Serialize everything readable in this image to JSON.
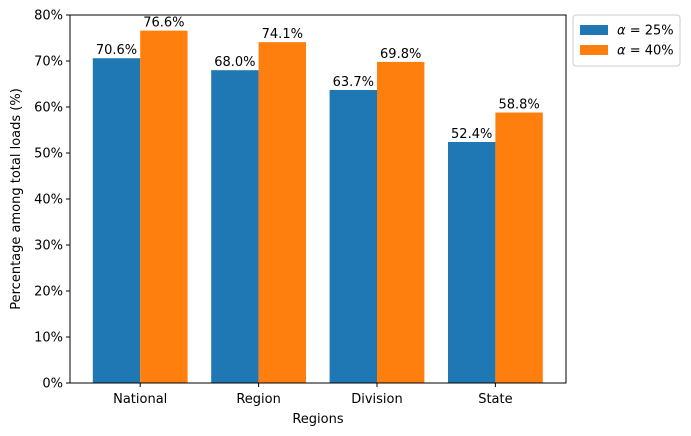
{
  "chart_data": {
    "type": "bar",
    "title": "",
    "xlabel": "Regions",
    "ylabel": "Percentage among total loads (%)",
    "categories": [
      "National",
      "Region",
      "Division",
      "State"
    ],
    "ylim": [
      0,
      80
    ],
    "yticks": [
      0,
      10,
      20,
      30,
      40,
      50,
      60,
      70,
      80
    ],
    "ytick_labels": [
      "0%",
      "10%",
      "20%",
      "30%",
      "40%",
      "50%",
      "60%",
      "70%",
      "80%"
    ],
    "grid": false,
    "legend_position": "outside-top-right",
    "series": [
      {
        "name": "α = 25%",
        "legend_prefix": "α",
        "legend_suffix": " = 25%",
        "color": "#1f77b4",
        "values": [
          70.6,
          68.0,
          63.7,
          52.4
        ],
        "labels": [
          "70.6%",
          "68.0%",
          "63.7%",
          "52.4%"
        ]
      },
      {
        "name": "α = 40%",
        "legend_prefix": "α",
        "legend_suffix": " = 40%",
        "color": "#ff7f0e",
        "values": [
          76.6,
          74.1,
          69.8,
          58.8
        ],
        "labels": [
          "76.6%",
          "74.1%",
          "69.8%",
          "58.8%"
        ]
      }
    ]
  }
}
